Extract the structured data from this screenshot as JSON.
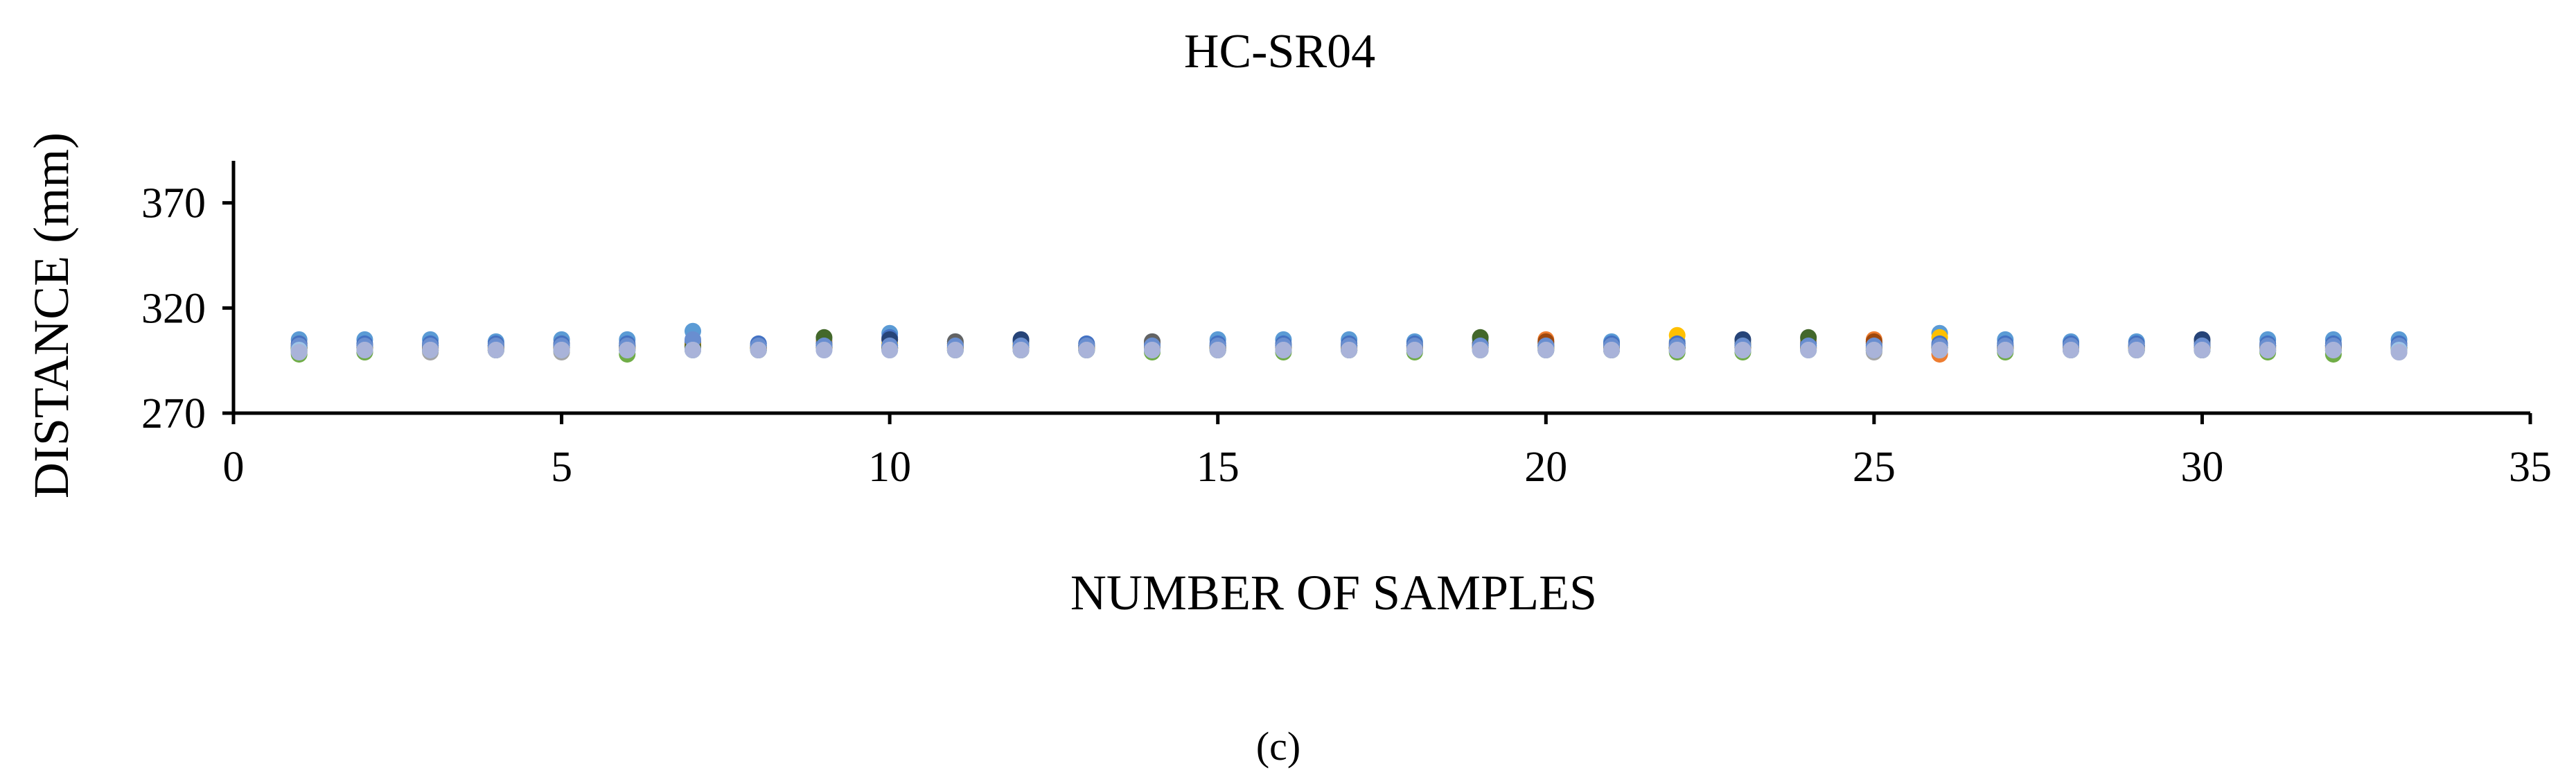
{
  "chart_data": {
    "type": "scatter",
    "title": "HC-SR04",
    "xlabel": "NUMBER OF SAMPLES",
    "ylabel": "DISTANCE (mm)",
    "xlim": [
      0,
      35
    ],
    "ylim": [
      270,
      390
    ],
    "xticks": [
      "0",
      "5",
      "10",
      "15",
      "20",
      "25",
      "30",
      "35"
    ],
    "yticks": [
      "270",
      "320",
      "370"
    ],
    "grid": false,
    "legend": "none",
    "caption": "(c)",
    "x": [
      1,
      2,
      3,
      4,
      5,
      6,
      7,
      8,
      9,
      10,
      11,
      12,
      13,
      14,
      15,
      16,
      17,
      18,
      19,
      20,
      21,
      22,
      23,
      24,
      25,
      26,
      27,
      28,
      29,
      30,
      31,
      32,
      33
    ],
    "series": [
      {
        "color": "#5b9bd5",
        "values": [
          305,
          305,
          305,
          304,
          305,
          305,
          309,
          303,
          305,
          308,
          304,
          304,
          303,
          304,
          305,
          305,
          305,
          304,
          305,
          304,
          304,
          304,
          304,
          305,
          304,
          308,
          305,
          304,
          304,
          304,
          305,
          305,
          305
        ]
      },
      {
        "color": "#ed7d31",
        "values": [
          303,
          302,
          302,
          302,
          303,
          302,
          304,
          301,
          304,
          305,
          303,
          303,
          302,
          303,
          302,
          302,
          302,
          302,
          303,
          305,
          302,
          303,
          303,
          304,
          305,
          298,
          302,
          302,
          302,
          303,
          302,
          302,
          302
        ]
      },
      {
        "color": "#a5a5a5",
        "values": [
          299,
          299,
          299,
          300,
          299,
          300,
          301,
          300,
          302,
          300,
          301,
          300,
          300,
          300,
          300,
          300,
          300,
          300,
          302,
          300,
          300,
          300,
          300,
          301,
          299,
          300,
          300,
          301,
          300,
          300,
          300,
          300,
          299
        ]
      },
      {
        "color": "#ffc000",
        "values": [
          302,
          302,
          302,
          302,
          302,
          302,
          303,
          302,
          303,
          303,
          303,
          303,
          302,
          302,
          302,
          302,
          302,
          302,
          303,
          303,
          302,
          307,
          303,
          303,
          303,
          306,
          302,
          302,
          302,
          302,
          302,
          302,
          302
        ]
      },
      {
        "color": "#4472c4",
        "values": [
          303,
          303,
          303,
          303,
          303,
          303,
          304,
          303,
          303,
          306,
          303,
          304,
          303,
          303,
          303,
          303,
          303,
          303,
          303,
          303,
          303,
          303,
          303,
          303,
          303,
          303,
          303,
          303,
          303,
          303,
          303,
          303,
          303
        ]
      },
      {
        "color": "#70ad47",
        "values": [
          298,
          299,
          300,
          300,
          300,
          298,
          300,
          300,
          302,
          301,
          300,
          300,
          300,
          299,
          300,
          299,
          300,
          299,
          300,
          301,
          300,
          299,
          299,
          300,
          300,
          301,
          299,
          301,
          300,
          300,
          299,
          298,
          300
        ]
      },
      {
        "color": "#264478",
        "values": [
          302,
          302,
          302,
          302,
          302,
          302,
          302,
          302,
          302,
          305,
          302,
          305,
          302,
          302,
          302,
          302,
          302,
          302,
          302,
          302,
          302,
          302,
          305,
          302,
          302,
          302,
          302,
          302,
          302,
          305,
          302,
          302,
          302
        ]
      },
      {
        "color": "#9e480e",
        "values": [
          301,
          301,
          301,
          301,
          301,
          301,
          301,
          301,
          301,
          301,
          301,
          301,
          301,
          301,
          301,
          301,
          301,
          301,
          301,
          304,
          301,
          301,
          301,
          301,
          304,
          301,
          301,
          301,
          301,
          301,
          301,
          301,
          301
        ]
      },
      {
        "color": "#636363",
        "values": [
          301,
          301,
          301,
          302,
          301,
          302,
          302,
          301,
          302,
          302,
          304,
          302,
          302,
          304,
          301,
          302,
          302,
          302,
          303,
          302,
          302,
          301,
          302,
          302,
          301,
          302,
          301,
          302,
          302,
          302,
          302,
          302,
          301
        ]
      },
      {
        "color": "#997300",
        "values": [
          301,
          301,
          301,
          301,
          301,
          301,
          302,
          301,
          301,
          301,
          301,
          301,
          301,
          301,
          301,
          301,
          301,
          301,
          301,
          301,
          301,
          301,
          301,
          301,
          301,
          301,
          301,
          301,
          301,
          301,
          301,
          301,
          301
        ]
      },
      {
        "color": "#43682b",
        "values": [
          300,
          300,
          300,
          300,
          300,
          300,
          301,
          300,
          306,
          301,
          300,
          300,
          300,
          300,
          300,
          300,
          300,
          300,
          306,
          300,
          300,
          301,
          302,
          306,
          300,
          301,
          300,
          300,
          300,
          300,
          300,
          300,
          300
        ]
      },
      {
        "color": "#698ed0",
        "values": [
          302,
          302,
          302,
          302,
          302,
          302,
          305,
          302,
          302,
          302,
          302,
          302,
          302,
          302,
          302,
          302,
          302,
          302,
          302,
          302,
          302,
          302,
          302,
          302,
          302,
          302,
          302,
          302,
          302,
          302,
          302,
          302,
          302
        ]
      },
      {
        "color": "#9dc3e6",
        "values": [
          300,
          300,
          300,
          300,
          300,
          300,
          300,
          300,
          300,
          300,
          300,
          300,
          300,
          300,
          300,
          300,
          300,
          300,
          300,
          300,
          300,
          300,
          300,
          300,
          300,
          300,
          300,
          300,
          300,
          300,
          300,
          300,
          300
        ]
      },
      {
        "color": "#a9b3d9",
        "values": [
          299,
          300,
          300,
          300,
          300,
          300,
          300,
          300,
          300,
          300,
          300,
          300,
          300,
          300,
          300,
          300,
          300,
          300,
          300,
          300,
          300,
          300,
          300,
          300,
          300,
          300,
          300,
          300,
          300,
          300,
          300,
          300,
          299
        ]
      }
    ]
  }
}
